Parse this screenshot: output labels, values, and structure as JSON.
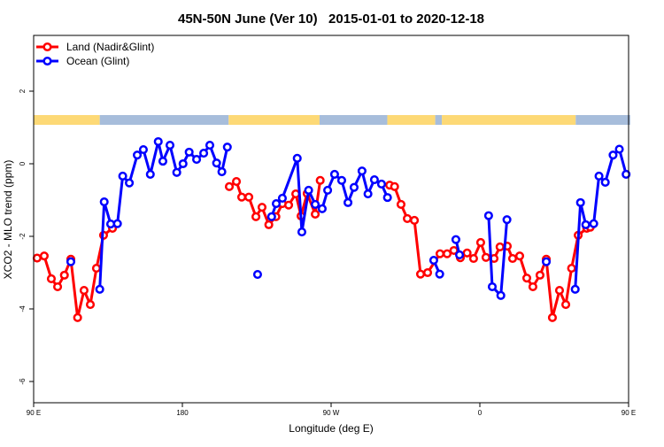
{
  "chart_data": {
    "type": "line",
    "title": "45N-50N June (Ver 10)   2015-01-01 to 2020-12-18",
    "xlabel": "Longitude (deg E)",
    "ylabel": "XCO2 - MLO trend (ppm)",
    "xlim": [
      90,
      450
    ],
    "ylim": [
      -6.6,
      3.55
    ],
    "x_ticks": [
      90,
      180,
      270,
      360,
      450
    ],
    "x_tick_values": [
      90,
      180,
      270,
      360,
      450,
      540
    ],
    "x_tick_labels": [
      "90 E",
      "180",
      "90 W",
      "0",
      "90 E",
      "180"
    ],
    "y_ticks": [
      -6,
      -4,
      -2,
      0,
      2
    ],
    "y_tick_labels": [
      "-6",
      "-4",
      "-2",
      "0",
      "2"
    ],
    "grid": false,
    "legend_position": "top-left",
    "land_ocean_band": {
      "colors": {
        "land": "#fdd976",
        "ocean": "#a7bddb"
      },
      "segments": [
        {
          "type": "land",
          "from": 90,
          "to": 130
        },
        {
          "type": "ocean",
          "from": 130,
          "to": 208
        },
        {
          "type": "land",
          "from": 208,
          "to": 263
        },
        {
          "type": "ocean",
          "from": 263,
          "to": 304
        },
        {
          "type": "land",
          "from": 304,
          "to": 333
        },
        {
          "type": "ocean",
          "from": 333,
          "to": 337
        },
        {
          "type": "land",
          "from": 337,
          "to": 418
        },
        {
          "type": "ocean",
          "from": 418,
          "to": 451
        }
      ]
    },
    "series": [
      {
        "name": "Land (Nadir&Glint)",
        "color": "#ff0000",
        "points": [
          [
            92.1,
            -2.6
          ],
          [
            96.4,
            -2.54
          ],
          [
            100.7,
            -3.17
          ],
          [
            104.5,
            -3.39
          ],
          [
            108.6,
            -3.07
          ],
          [
            112.5,
            -2.63
          ],
          [
            116.6,
            -4.24
          ],
          [
            120.5,
            -3.49
          ],
          [
            124.3,
            -3.88
          ],
          [
            128.0,
            -2.88
          ],
          [
            132.3,
            -1.97
          ],
          [
            137.7,
            -1.78
          ],
          null,
          [
            208.4,
            -0.63
          ],
          [
            212.7,
            -0.49
          ],
          [
            215.9,
            -0.92
          ],
          [
            220.2,
            -0.92
          ],
          [
            224.5,
            -1.46
          ],
          [
            228.2,
            -1.2
          ],
          [
            232.3,
            -1.68
          ],
          [
            236.6,
            -1.46
          ],
          [
            240.5,
            -1.1
          ],
          [
            244.3,
            -1.14
          ],
          [
            248.6,
            -0.83
          ],
          [
            251.8,
            -1.44
          ],
          [
            255.5,
            -0.82
          ],
          [
            260.4,
            -1.39
          ],
          [
            263.4,
            -0.46
          ],
          null,
          [
            305.4,
            -0.59
          ],
          [
            308.4,
            -0.63
          ],
          [
            312.3,
            -1.12
          ],
          [
            316.1,
            -1.51
          ],
          [
            320.4,
            -1.56
          ],
          [
            324.1,
            -3.04
          ],
          [
            328.4,
            -3.0
          ],
          [
            335.9,
            -2.48
          ],
          [
            340.2,
            -2.48
          ],
          [
            344.3,
            -2.39
          ],
          [
            348.2,
            -2.59
          ],
          [
            352.3,
            -2.46
          ],
          [
            356.2,
            -2.61
          ],
          [
            360.5,
            -2.17
          ],
          [
            363.7,
            -2.58
          ],
          [
            368.6,
            -2.61
          ],
          [
            372.2,
            -2.29
          ],
          [
            376.6,
            -2.27
          ],
          [
            379.8,
            -2.61
          ],
          [
            384.1,
            -2.54
          ],
          [
            388.4,
            -3.15
          ],
          [
            392.1,
            -3.39
          ],
          [
            396.4,
            -3.07
          ],
          [
            400.2,
            -2.63
          ],
          [
            403.9,
            -4.24
          ],
          [
            408.2,
            -3.49
          ],
          [
            412.0,
            -3.88
          ],
          [
            415.5,
            -2.88
          ],
          [
            419.5,
            -1.97
          ],
          [
            424.7,
            -1.78
          ],
          [
            426.8,
            -1.75
          ]
        ]
      },
      {
        "name": "Ocean (Glint)",
        "color": "#0000ff",
        "points": [
          [
            112.5,
            -2.7
          ],
          null,
          [
            130.0,
            -3.46
          ],
          [
            132.7,
            -1.05
          ],
          [
            136.6,
            -1.66
          ],
          [
            140.7,
            -1.65
          ],
          [
            143.9,
            -0.34
          ],
          [
            147.9,
            -0.53
          ],
          [
            152.7,
            0.24
          ],
          [
            156.4,
            0.39
          ],
          [
            160.6,
            -0.29
          ],
          [
            165.4,
            0.61
          ],
          [
            168.2,
            0.07
          ],
          [
            172.5,
            0.51
          ],
          [
            176.6,
            -0.24
          ],
          [
            180.4,
            0.0
          ],
          [
            184.1,
            0.32
          ],
          [
            188.6,
            0.12
          ],
          [
            192.9,
            0.29
          ],
          [
            196.6,
            0.51
          ],
          [
            200.7,
            0.02
          ],
          [
            203.9,
            -0.22
          ],
          [
            207.2,
            0.46
          ],
          null,
          [
            225.5,
            -3.05
          ],
          null,
          [
            234.0,
            -1.46
          ],
          [
            236.8,
            -1.1
          ],
          [
            240.5,
            -0.95
          ],
          [
            249.5,
            0.15
          ],
          [
            252.3,
            -1.88
          ],
          [
            256.4,
            -0.73
          ],
          [
            260.4,
            -1.12
          ],
          [
            264.6,
            -1.24
          ],
          [
            267.9,
            -0.73
          ],
          [
            272.1,
            -0.29
          ],
          [
            276.4,
            -0.46
          ],
          [
            280.2,
            -1.07
          ],
          [
            283.9,
            -0.65
          ],
          [
            288.7,
            -0.2
          ],
          [
            292.3,
            -0.83
          ],
          [
            296.2,
            -0.44
          ],
          [
            300.5,
            -0.56
          ],
          [
            304.1,
            -0.93
          ],
          null,
          [
            332.1,
            -2.66
          ],
          [
            335.7,
            -3.04
          ],
          null,
          [
            345.5,
            -2.09
          ],
          [
            347.7,
            -2.51
          ],
          null,
          [
            365.3,
            -1.43
          ],
          [
            367.5,
            -3.39
          ],
          [
            372.7,
            -3.63
          ],
          [
            376.4,
            -1.54
          ],
          null,
          [
            400.2,
            -2.7
          ],
          null,
          [
            417.7,
            -3.46
          ],
          [
            420.9,
            -1.07
          ],
          [
            424.1,
            -1.68
          ],
          [
            428.9,
            -1.65
          ],
          [
            432.1,
            -0.34
          ],
          [
            435.9,
            -0.51
          ],
          [
            440.6,
            0.24
          ],
          [
            444.4,
            0.4
          ],
          [
            448.5,
            -0.29
          ]
        ]
      }
    ]
  }
}
